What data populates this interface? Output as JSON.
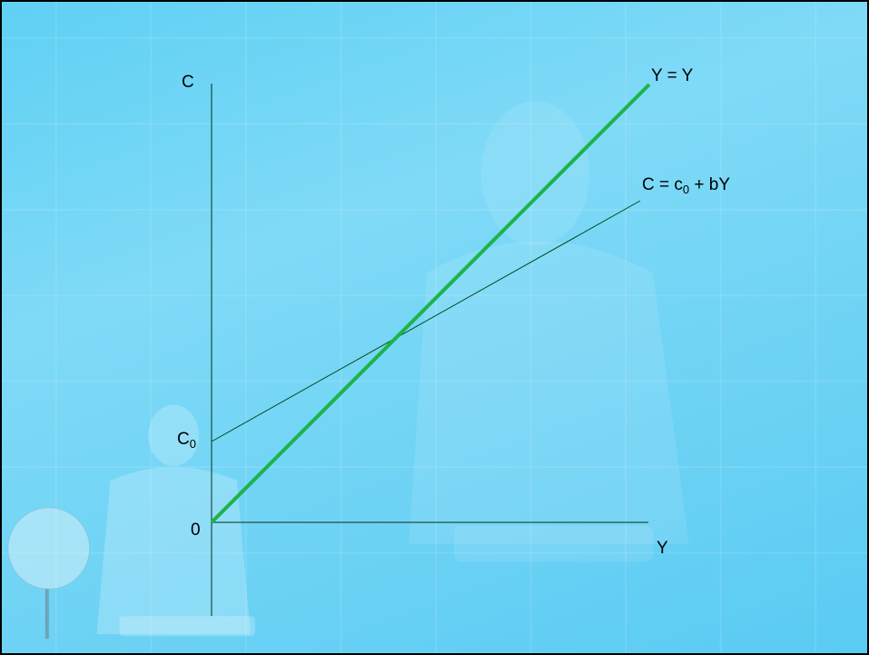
{
  "diagram": {
    "axes": {
      "y_label": "C",
      "x_label": "Y",
      "origin_label": "0",
      "intercept_label_main": "C",
      "intercept_label_sub": "0"
    },
    "lines": [
      {
        "id": "forty-five-degree-line",
        "label": "Y = Y",
        "color": "#1db34a"
      },
      {
        "id": "consumption-function",
        "label_prefix": "C = c",
        "label_sub": "0",
        "label_suffix": " + bY",
        "color": "#004d1a"
      }
    ]
  },
  "colors": {
    "background_top": "#5fd0f4",
    "background_bottom": "#5acbf2",
    "axis": "#003311"
  }
}
